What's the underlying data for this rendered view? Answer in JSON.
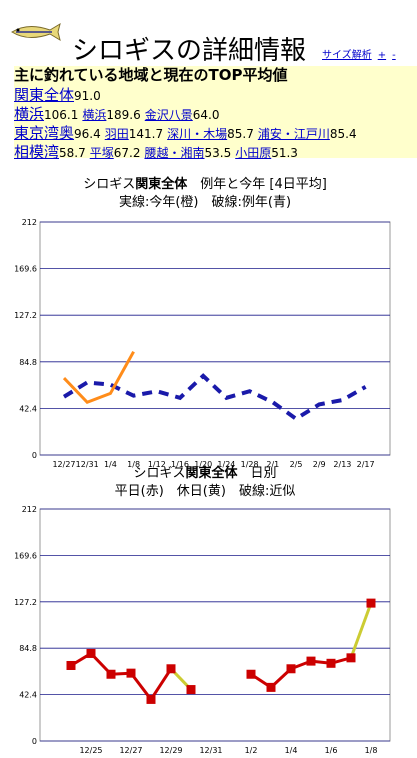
{
  "header": {
    "title": "シロギスの詳細情報",
    "links": [
      "サイズ解析",
      "+",
      "-"
    ]
  },
  "summary": {
    "heading": "主に釣れている地域と現在のTOP平均値",
    "regions": [
      {
        "name": "関東全体",
        "value": "91.0",
        "spots": []
      },
      {
        "name": "横浜",
        "value": "106.1",
        "spots": [
          {
            "name": "横浜",
            "value": "189.6"
          },
          {
            "name": "金沢八景",
            "value": "64.0"
          }
        ]
      },
      {
        "name": "東京湾奥",
        "value": "96.4",
        "spots": [
          {
            "name": "羽田",
            "value": "141.7"
          },
          {
            "name": "深川・木場",
            "value": "85.7"
          },
          {
            "name": "浦安・江戸川",
            "value": "85.4"
          }
        ]
      },
      {
        "name": "相模湾",
        "value": "58.7",
        "spots": [
          {
            "name": "平塚",
            "value": "67.2"
          },
          {
            "name": "腰越・湘南",
            "value": "53.5"
          },
          {
            "name": "小田原",
            "value": "51.3"
          }
        ]
      }
    ]
  },
  "chart_data": [
    {
      "type": "line",
      "title": [
        "シロギス",
        "関東全体",
        "　例年と今年 [4日平均]"
      ],
      "subtitle": "実線:今年(橙)　破線:例年(青)",
      "categories": [
        "12/27",
        "12/31",
        "1/4",
        "1/8",
        "1/12",
        "1/16",
        "1/20",
        "1/24",
        "1/28",
        "2/1",
        "2/5",
        "2/9",
        "2/13",
        "2/17"
      ],
      "ylim": [
        0,
        212
      ],
      "yticks": [
        0,
        42.4,
        84.8,
        127.2,
        169.6,
        212
      ],
      "grid": true,
      "series": [
        {
          "color": "#1a1aaa",
          "dashed": true,
          "values": [
            53,
            66,
            64,
            54,
            58,
            52,
            72,
            52,
            58,
            48,
            33,
            46,
            50,
            62
          ]
        },
        {
          "color": "#ff8c1a",
          "values": [
            70,
            48,
            56,
            94,
            null,
            null,
            null,
            null,
            null,
            null,
            null,
            null,
            null,
            null
          ]
        }
      ]
    },
    {
      "type": "line",
      "title": [
        "シロギス",
        "関東全体",
        "　日別"
      ],
      "subtitle": "平日(赤)　休日(黄)　破線:近似",
      "categories": [
        null,
        "12/25",
        null,
        "12/27",
        null,
        "12/29",
        null,
        "12/31",
        null,
        "1/2",
        null,
        "1/4",
        null,
        "1/6",
        null,
        "1/8"
      ],
      "ylim": [
        0,
        212
      ],
      "yticks": [
        0,
        42.4,
        84.8,
        127.2,
        169.6,
        212
      ],
      "grid": true,
      "series": [
        {
          "color": "#cc0000",
          "marker": "square",
          "line_colors": [
            null,
            "#cc0000",
            "#cc0000",
            "#cc0000",
            "#cc0000",
            "#cc0000",
            "#cccc33",
            null,
            null,
            null,
            "#cc0000",
            "#cc0000",
            "#cc0000",
            "#cc0000",
            "#cc0000",
            "#cccc33"
          ],
          "values": [
            69,
            80,
            61,
            62,
            38,
            66,
            47,
            null,
            null,
            61,
            49,
            66,
            73,
            71,
            76,
            126
          ]
        }
      ]
    }
  ]
}
